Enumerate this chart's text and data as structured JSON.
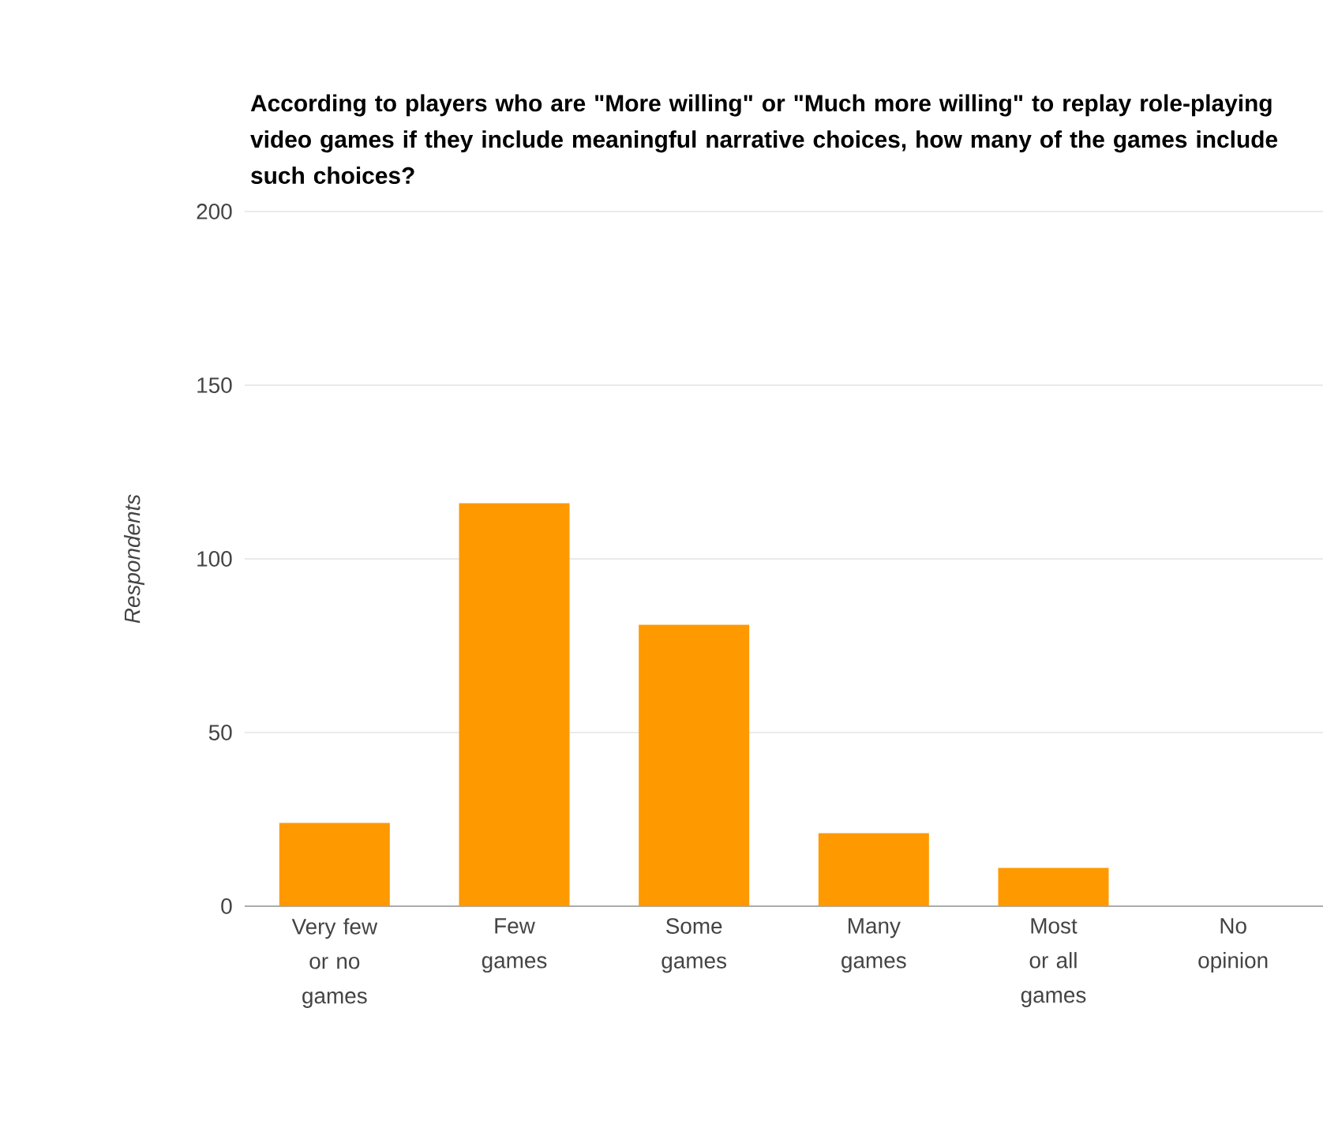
{
  "chart_data": {
    "type": "bar",
    "title": "According to players who are \"More willing\" or \"Much more willing\" to replay role-playing video games if they include meaningful narrative choices, how many of the games include such choices?",
    "ylabel": "Respondents",
    "categories": [
      "Very few or no games",
      "Few games",
      "Some games",
      "Many games",
      "Most or all games",
      "No opinion"
    ],
    "values": [
      24,
      116,
      81,
      21,
      11,
      0
    ],
    "color": "#ff9900",
    "ylim": [
      0,
      200
    ],
    "yticks": [
      0,
      50,
      100,
      150,
      200
    ],
    "grid": "y"
  }
}
